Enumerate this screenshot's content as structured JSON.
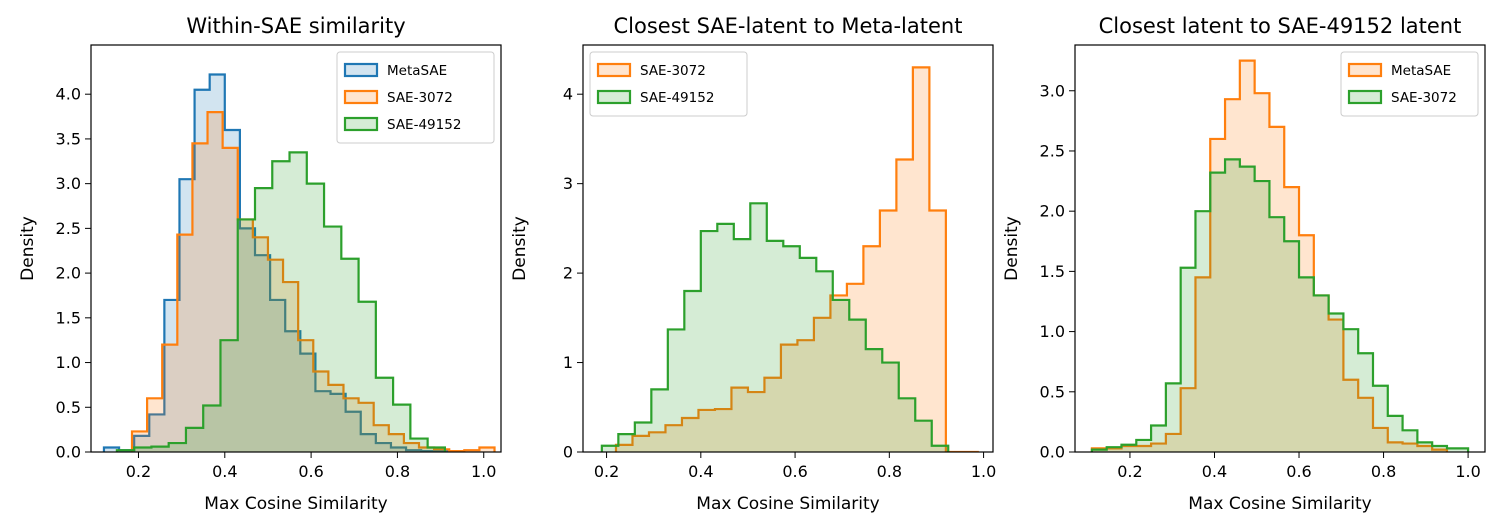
{
  "colors": {
    "blue": "#1f77b4",
    "orange": "#ff7f0e",
    "green": "#2ca02c"
  },
  "chart_data": [
    {
      "type": "histogram",
      "title": "Within-SAE similarity",
      "xlabel": "Max Cosine Similarity",
      "ylabel": "Density",
      "xlim": [
        0.09,
        1.04
      ],
      "ylim": [
        0,
        4.55
      ],
      "xticks": [
        "0.2",
        "0.4",
        "0.6",
        "0.8",
        "1.0"
      ],
      "xtick_values": [
        0.2,
        0.4,
        0.6,
        0.8,
        1.0
      ],
      "yticks": [
        "0.0",
        "0.5",
        "1.0",
        "1.5",
        "2.0",
        "2.5",
        "3.0",
        "3.5",
        "4.0"
      ],
      "ytick_values": [
        0,
        0.5,
        1.0,
        1.5,
        2.0,
        2.5,
        3.0,
        3.5,
        4.0
      ],
      "legend_position": "top-right",
      "series": [
        {
          "name": "MetaSAE",
          "color": "#1f77b4",
          "edges": [
            0.12,
            0.155,
            0.19,
            0.225,
            0.26,
            0.295,
            0.33,
            0.365,
            0.4,
            0.435,
            0.47,
            0.505,
            0.54,
            0.575,
            0.61,
            0.645,
            0.68,
            0.715,
            0.75,
            0.785,
            0.82,
            0.855,
            0.89,
            0.925
          ],
          "values": [
            0.05,
            0.02,
            0.18,
            0.42,
            1.7,
            3.05,
            4.05,
            4.22,
            3.6,
            2.5,
            2.2,
            1.7,
            1.35,
            1.1,
            0.68,
            0.65,
            0.45,
            0.2,
            0.1,
            0.05,
            0.02,
            0.01,
            0.01
          ]
        },
        {
          "name": "SAE-3072",
          "color": "#ff7f0e",
          "edges": [
            0.185,
            0.22,
            0.255,
            0.29,
            0.325,
            0.36,
            0.395,
            0.43,
            0.465,
            0.5,
            0.535,
            0.57,
            0.605,
            0.64,
            0.675,
            0.71,
            0.745,
            0.78,
            0.815,
            0.85,
            0.885,
            0.92,
            0.955,
            0.99,
            1.025
          ],
          "values": [
            0.23,
            0.6,
            1.2,
            2.43,
            3.45,
            3.8,
            3.4,
            2.6,
            2.4,
            2.15,
            1.9,
            1.25,
            0.9,
            0.75,
            0.6,
            0.55,
            0.3,
            0.2,
            0.1,
            0.05,
            0.03,
            0.01,
            0.02,
            0.05
          ]
        },
        {
          "name": "SAE-49152",
          "color": "#2ca02c",
          "edges": [
            0.15,
            0.19,
            0.23,
            0.27,
            0.31,
            0.35,
            0.39,
            0.43,
            0.47,
            0.51,
            0.55,
            0.59,
            0.63,
            0.67,
            0.71,
            0.75,
            0.79,
            0.83,
            0.87,
            0.91
          ],
          "values": [
            0.02,
            0.05,
            0.06,
            0.1,
            0.27,
            0.52,
            1.25,
            2.6,
            2.95,
            3.25,
            3.35,
            3.0,
            2.52,
            2.16,
            1.68,
            0.83,
            0.53,
            0.15,
            0.05
          ]
        }
      ]
    },
    {
      "type": "histogram",
      "title": "Closest SAE-latent to Meta-latent",
      "xlabel": "Max Cosine Similarity",
      "ylabel": "Density",
      "xlim": [
        0.15,
        1.02
      ],
      "ylim": [
        0,
        4.55
      ],
      "xticks": [
        "0.2",
        "0.4",
        "0.6",
        "0.8",
        "1.0"
      ],
      "xtick_values": [
        0.2,
        0.4,
        0.6,
        0.8,
        1.0
      ],
      "yticks": [
        "0",
        "1",
        "2",
        "3",
        "4"
      ],
      "ytick_values": [
        0,
        1,
        2,
        3,
        4
      ],
      "legend_position": "top-left",
      "series": [
        {
          "name": "SAE-3072",
          "color": "#ff7f0e",
          "edges": [
            0.22,
            0.255,
            0.29,
            0.325,
            0.36,
            0.395,
            0.43,
            0.465,
            0.5,
            0.535,
            0.57,
            0.605,
            0.64,
            0.675,
            0.71,
            0.745,
            0.78,
            0.815,
            0.85,
            0.885,
            0.92,
            0.955,
            0.99
          ],
          "values": [
            0.08,
            0.18,
            0.22,
            0.3,
            0.38,
            0.47,
            0.48,
            0.72,
            0.67,
            0.83,
            1.2,
            1.25,
            1.5,
            1.75,
            1.88,
            2.3,
            2.7,
            3.27,
            4.3,
            2.7,
            0.0,
            0.0
          ],
          "note": "final two bins approximated"
        },
        {
          "name": "SAE-49152",
          "color": "#2ca02c",
          "edges": [
            0.19,
            0.225,
            0.26,
            0.295,
            0.33,
            0.365,
            0.4,
            0.435,
            0.47,
            0.505,
            0.54,
            0.575,
            0.61,
            0.645,
            0.68,
            0.715,
            0.75,
            0.785,
            0.82,
            0.855,
            0.89,
            0.925
          ],
          "values": [
            0.07,
            0.2,
            0.33,
            0.7,
            1.37,
            1.8,
            2.47,
            2.55,
            2.38,
            2.78,
            2.36,
            2.3,
            2.17,
            2.02,
            1.7,
            1.48,
            1.15,
            1.0,
            0.6,
            0.35,
            0.07
          ]
        }
      ]
    },
    {
      "type": "histogram",
      "title": "Closest latent to SAE-49152 latent",
      "xlabel": "Max Cosine Similarity",
      "ylabel": "Density",
      "xlim": [
        0.07,
        1.04
      ],
      "ylim": [
        0,
        3.38
      ],
      "xticks": [
        "0.2",
        "0.4",
        "0.6",
        "0.8",
        "1.0"
      ],
      "xtick_values": [
        0.2,
        0.4,
        0.6,
        0.8,
        1.0
      ],
      "yticks": [
        "0.0",
        "0.5",
        "1.0",
        "1.5",
        "2.0",
        "2.5",
        "3.0"
      ],
      "ytick_values": [
        0,
        0.5,
        1.0,
        1.5,
        2.0,
        2.5,
        3.0
      ],
      "legend_position": "top-right",
      "series": [
        {
          "name": "MetaSAE",
          "color": "#ff7f0e",
          "edges": [
            0.11,
            0.145,
            0.18,
            0.215,
            0.25,
            0.285,
            0.32,
            0.355,
            0.39,
            0.425,
            0.46,
            0.495,
            0.53,
            0.565,
            0.6,
            0.635,
            0.67,
            0.705,
            0.74,
            0.775,
            0.81,
            0.845,
            0.88,
            0.915,
            0.95
          ],
          "values": [
            0.03,
            0.03,
            0.05,
            0.05,
            0.07,
            0.15,
            0.53,
            1.45,
            2.6,
            2.93,
            3.25,
            2.98,
            2.7,
            2.2,
            1.8,
            1.3,
            1.1,
            0.6,
            0.45,
            0.2,
            0.08,
            0.07,
            0.05,
            0.02
          ]
        },
        {
          "name": "SAE-3072",
          "color": "#2ca02c",
          "edges": [
            0.11,
            0.145,
            0.18,
            0.215,
            0.25,
            0.285,
            0.32,
            0.355,
            0.39,
            0.425,
            0.46,
            0.495,
            0.53,
            0.565,
            0.6,
            0.635,
            0.67,
            0.705,
            0.74,
            0.775,
            0.81,
            0.845,
            0.88,
            0.915,
            0.95,
            1.0
          ],
          "values": [
            0.02,
            0.04,
            0.06,
            0.1,
            0.22,
            0.57,
            1.53,
            2.0,
            2.32,
            2.43,
            2.37,
            2.25,
            1.95,
            1.75,
            1.45,
            1.3,
            1.15,
            1.02,
            0.82,
            0.55,
            0.3,
            0.18,
            0.08,
            0.05,
            0.03
          ]
        }
      ]
    }
  ]
}
